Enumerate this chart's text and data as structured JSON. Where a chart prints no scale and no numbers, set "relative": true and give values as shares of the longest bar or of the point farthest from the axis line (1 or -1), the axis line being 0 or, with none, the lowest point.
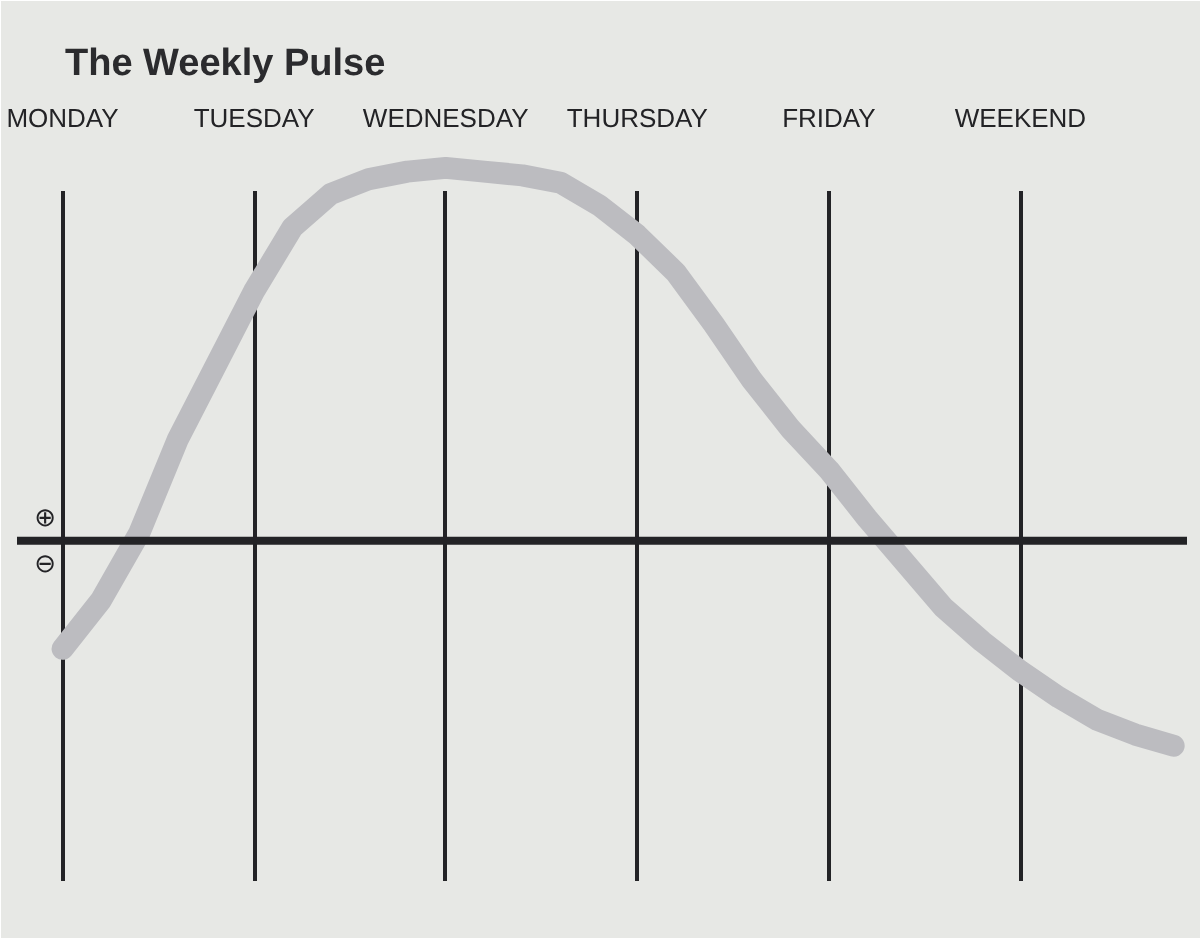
{
  "chart_data": {
    "type": "line",
    "title": "The Weekly Pulse",
    "relative": true,
    "categories": [
      "MONDAY",
      null,
      null,
      null,
      null,
      "TUESDAY",
      null,
      null,
      null,
      null,
      "WEDNESDAY",
      null,
      null,
      null,
      null,
      "THURSDAY",
      null,
      null,
      null,
      null,
      "FRIDAY",
      null,
      null,
      null,
      null,
      "WEEKEND",
      null,
      null,
      null,
      null
    ],
    "values": [
      -0.29,
      -0.16,
      0.02,
      0.27,
      0.47,
      0.67,
      0.84,
      0.93,
      0.97,
      0.99,
      1,
      0.99,
      0.98,
      0.96,
      0.9,
      0.82,
      0.72,
      0.58,
      0.43,
      0.3,
      0.19,
      0.06,
      -0.06,
      -0.18,
      -0.27,
      -0.35,
      -0.42,
      -0.48,
      -0.52,
      -0.55
    ],
    "color": "#bcbcc0",
    "grid": "x",
    "marker": "none",
    "line_style": "solid",
    "tick_labels": "x",
    "annotations": [
      "⊕",
      "⊖"
    ]
  }
}
